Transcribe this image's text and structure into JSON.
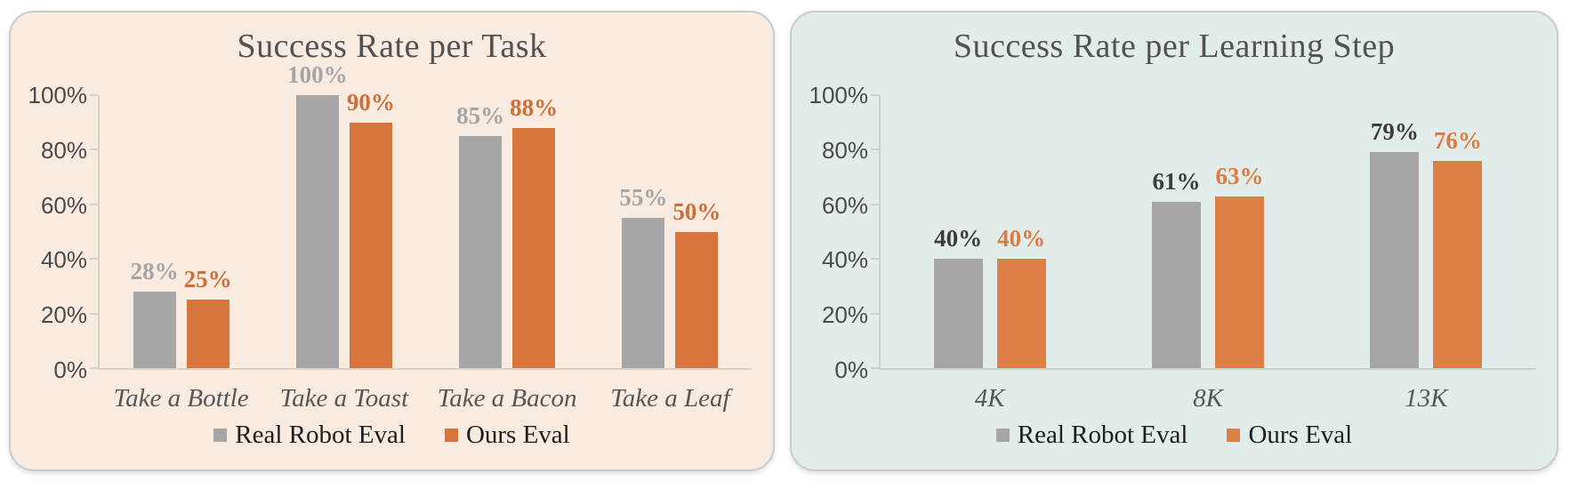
{
  "page": {
    "background": "#FFFFFF"
  },
  "chart_data": [
    {
      "type": "bar",
      "title": "Success Rate per Task",
      "panel_background": "#FAEBE1",
      "axis_color": "#D7D1C9",
      "categories": [
        "Take a Bottle",
        "Take a Toast",
        "Take a Bacon",
        "Take a Leaf"
      ],
      "series": [
        {
          "name": "Real Robot Eval",
          "color": "#A6A6A6",
          "label_color": "#A5A5A5",
          "values": [
            28,
            100,
            85,
            55
          ]
        },
        {
          "name": "Ours Eval",
          "color": "#D6753C",
          "label_color": "#CF6F37",
          "values": [
            25,
            90,
            88,
            50
          ]
        }
      ],
      "data_label_suffix": "%",
      "ytick_labels": [
        "0%",
        "20%",
        "40%",
        "60%",
        "80%",
        "100%"
      ],
      "ylim": [
        0,
        100
      ],
      "xlabel": "",
      "ylabel": "",
      "grid": false,
      "legend_position": "bottom"
    },
    {
      "type": "bar",
      "title": "Success Rate per Learning Step",
      "panel_background": "#E2EDEB",
      "axis_color": "#C6D2CE",
      "categories": [
        "4K",
        "8K",
        "13K"
      ],
      "series": [
        {
          "name": "Real Robot Eval",
          "color": "#A6A6A6",
          "label_color": "#3C3C3C",
          "values": [
            40,
            61,
            79
          ]
        },
        {
          "name": "Ours Eval",
          "color": "#DD7F46",
          "label_color": "#DE7B40",
          "values": [
            40,
            63,
            76
          ]
        }
      ],
      "data_label_suffix": "%",
      "ytick_labels": [
        "0%",
        "20%",
        "40%",
        "60%",
        "80%",
        "100%"
      ],
      "ylim": [
        0,
        100
      ],
      "xlabel": "",
      "ylabel": "",
      "grid": false,
      "legend_position": "bottom"
    }
  ]
}
